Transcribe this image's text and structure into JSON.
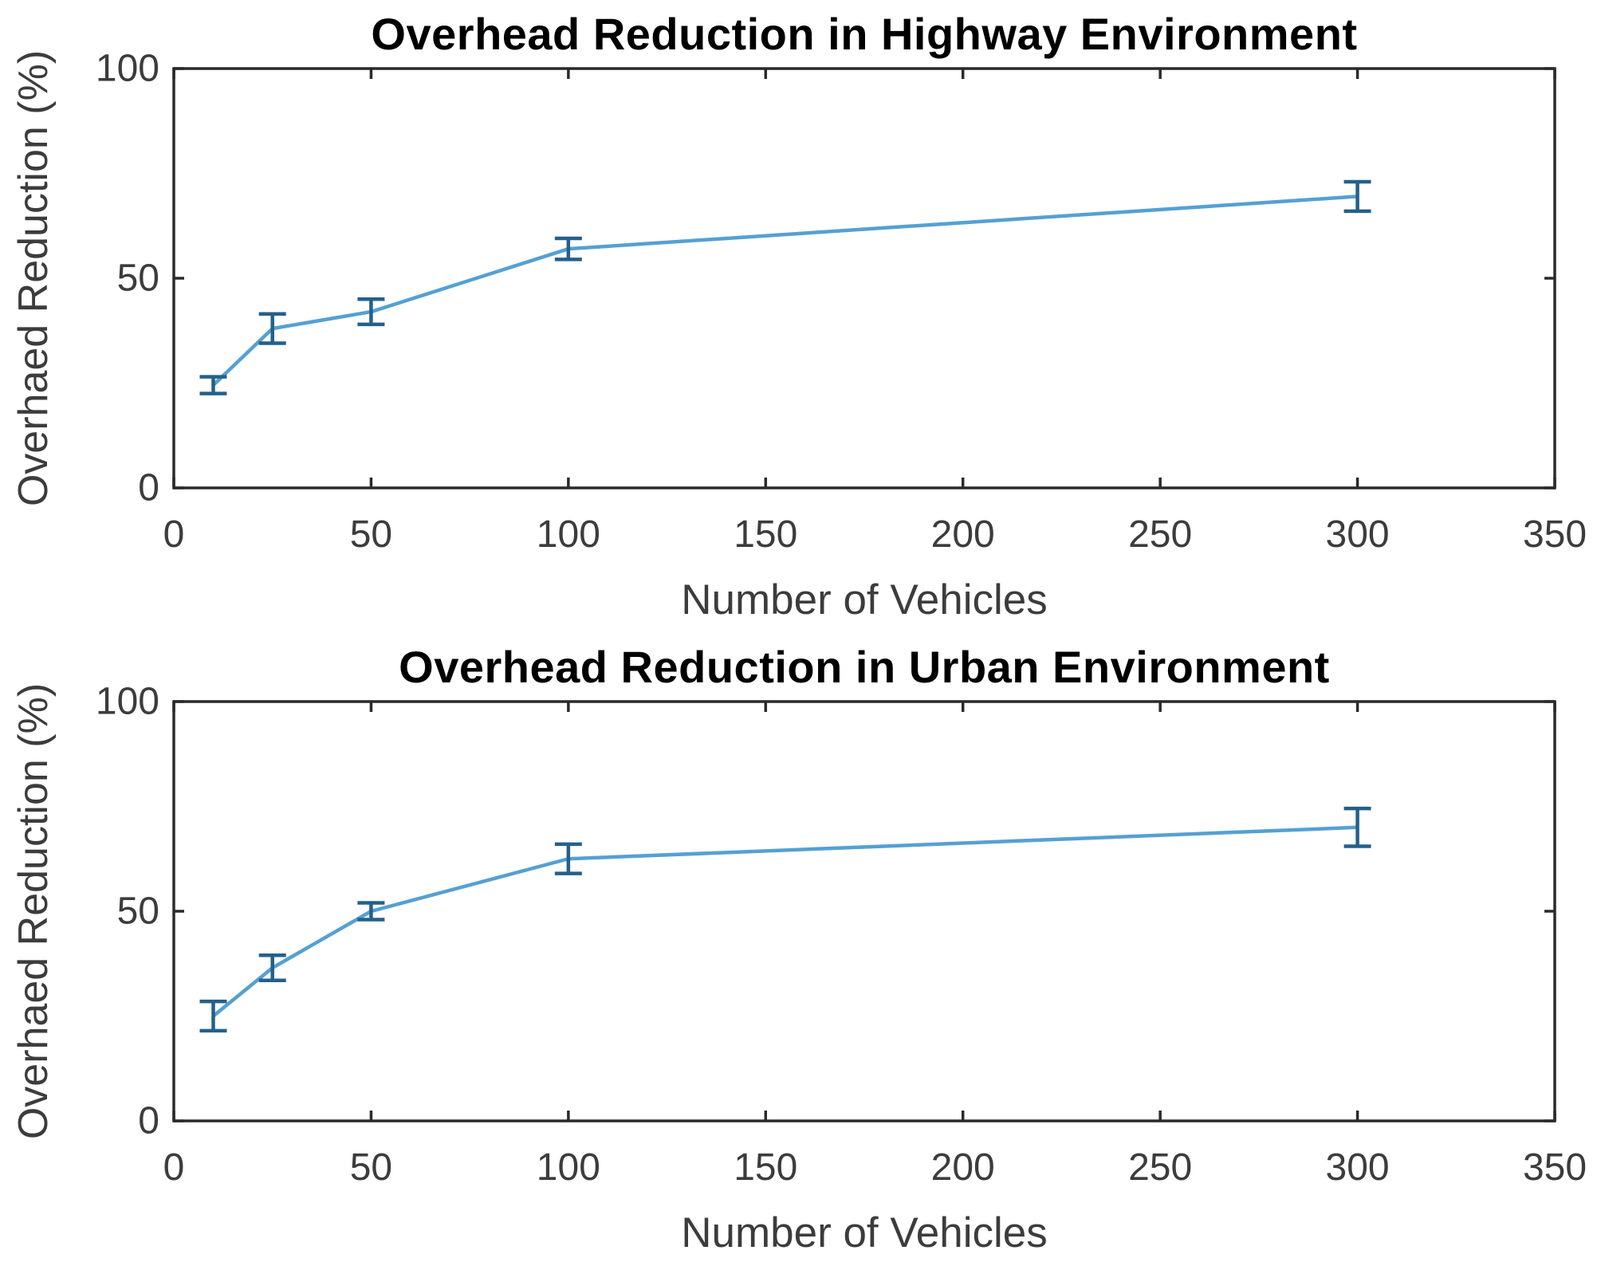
{
  "figure": {
    "background": "#ffffff"
  },
  "colors": {
    "line": "#55a0d3",
    "error_bar": "#24608a",
    "axis": "#2a2a2a",
    "tick_text": "#3c3c3c",
    "title_text": "#000000"
  },
  "chart_data": [
    {
      "type": "line",
      "title": "Overhead Reduction in Highway Environment",
      "xlabel": "Number of Vehicles",
      "ylabel": "Overhaed Reduction (%)",
      "x": [
        10,
        25,
        50,
        100,
        300
      ],
      "y": [
        24.5,
        38,
        42,
        57,
        69.5
      ],
      "yerr": [
        2,
        3.5,
        3,
        2.5,
        3.5
      ],
      "xlim": [
        0,
        350
      ],
      "ylim": [
        0,
        100
      ],
      "xticks": [
        0,
        50,
        100,
        150,
        200,
        250,
        300,
        350
      ],
      "yticks": [
        0,
        50,
        100
      ],
      "grid": false,
      "legend": null,
      "marker": "none",
      "error_caps": true
    },
    {
      "type": "line",
      "title": "Overhead Reduction in Urban Environment",
      "xlabel": "Number of Vehicles",
      "ylabel": "Overhaed Reduction (%)",
      "x": [
        10,
        25,
        50,
        100,
        300
      ],
      "y": [
        25,
        36.5,
        50,
        62.5,
        70
      ],
      "yerr": [
        3.5,
        3,
        2,
        3.5,
        4.5
      ],
      "xlim": [
        0,
        350
      ],
      "ylim": [
        0,
        100
      ],
      "xticks": [
        0,
        50,
        100,
        150,
        200,
        250,
        300,
        350
      ],
      "yticks": [
        0,
        50,
        100
      ],
      "grid": false,
      "legend": null,
      "marker": "none",
      "error_caps": true
    }
  ]
}
